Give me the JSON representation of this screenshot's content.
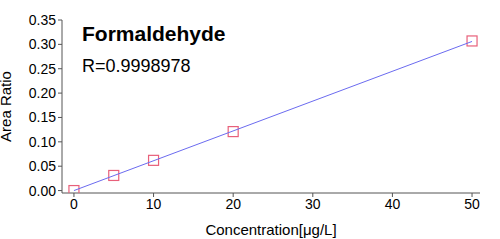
{
  "chart_data": {
    "type": "scatter",
    "title": "Formaldehyde",
    "annotations": [
      "R=0.9998978"
    ],
    "xlabel": "Concentration[μg/L]",
    "ylabel": "Area Ratio",
    "x": [
      0,
      5,
      10,
      20,
      50
    ],
    "series": [
      {
        "type": "scatter",
        "color": "#e8607a",
        "marker": "square",
        "values": [
          0.0,
          0.031,
          0.062,
          0.121,
          0.307
        ]
      },
      {
        "type": "line",
        "color": "#6b6bf0",
        "marker": "none",
        "line_style": "solid",
        "x": [
          0,
          50
        ],
        "values": [
          0.0,
          0.306
        ]
      }
    ],
    "xlim": [
      -1.5,
      51
    ],
    "ylim": [
      -0.005,
      0.35
    ],
    "xticks": [
      0,
      10,
      20,
      30,
      40,
      50
    ],
    "yticks": [
      {
        "value": 0,
        "label": "0.00"
      },
      {
        "value": 0.05,
        "label": "0.05"
      },
      {
        "value": 0.1,
        "label": "0.10"
      },
      {
        "value": 0.15,
        "label": "0.15"
      },
      {
        "value": 0.2,
        "label": "0.20"
      },
      {
        "value": 0.25,
        "label": "0.25"
      },
      {
        "value": 0.3,
        "label": "0.30"
      },
      {
        "value": 0.35,
        "label": "0.35"
      }
    ],
    "grid": false
  }
}
